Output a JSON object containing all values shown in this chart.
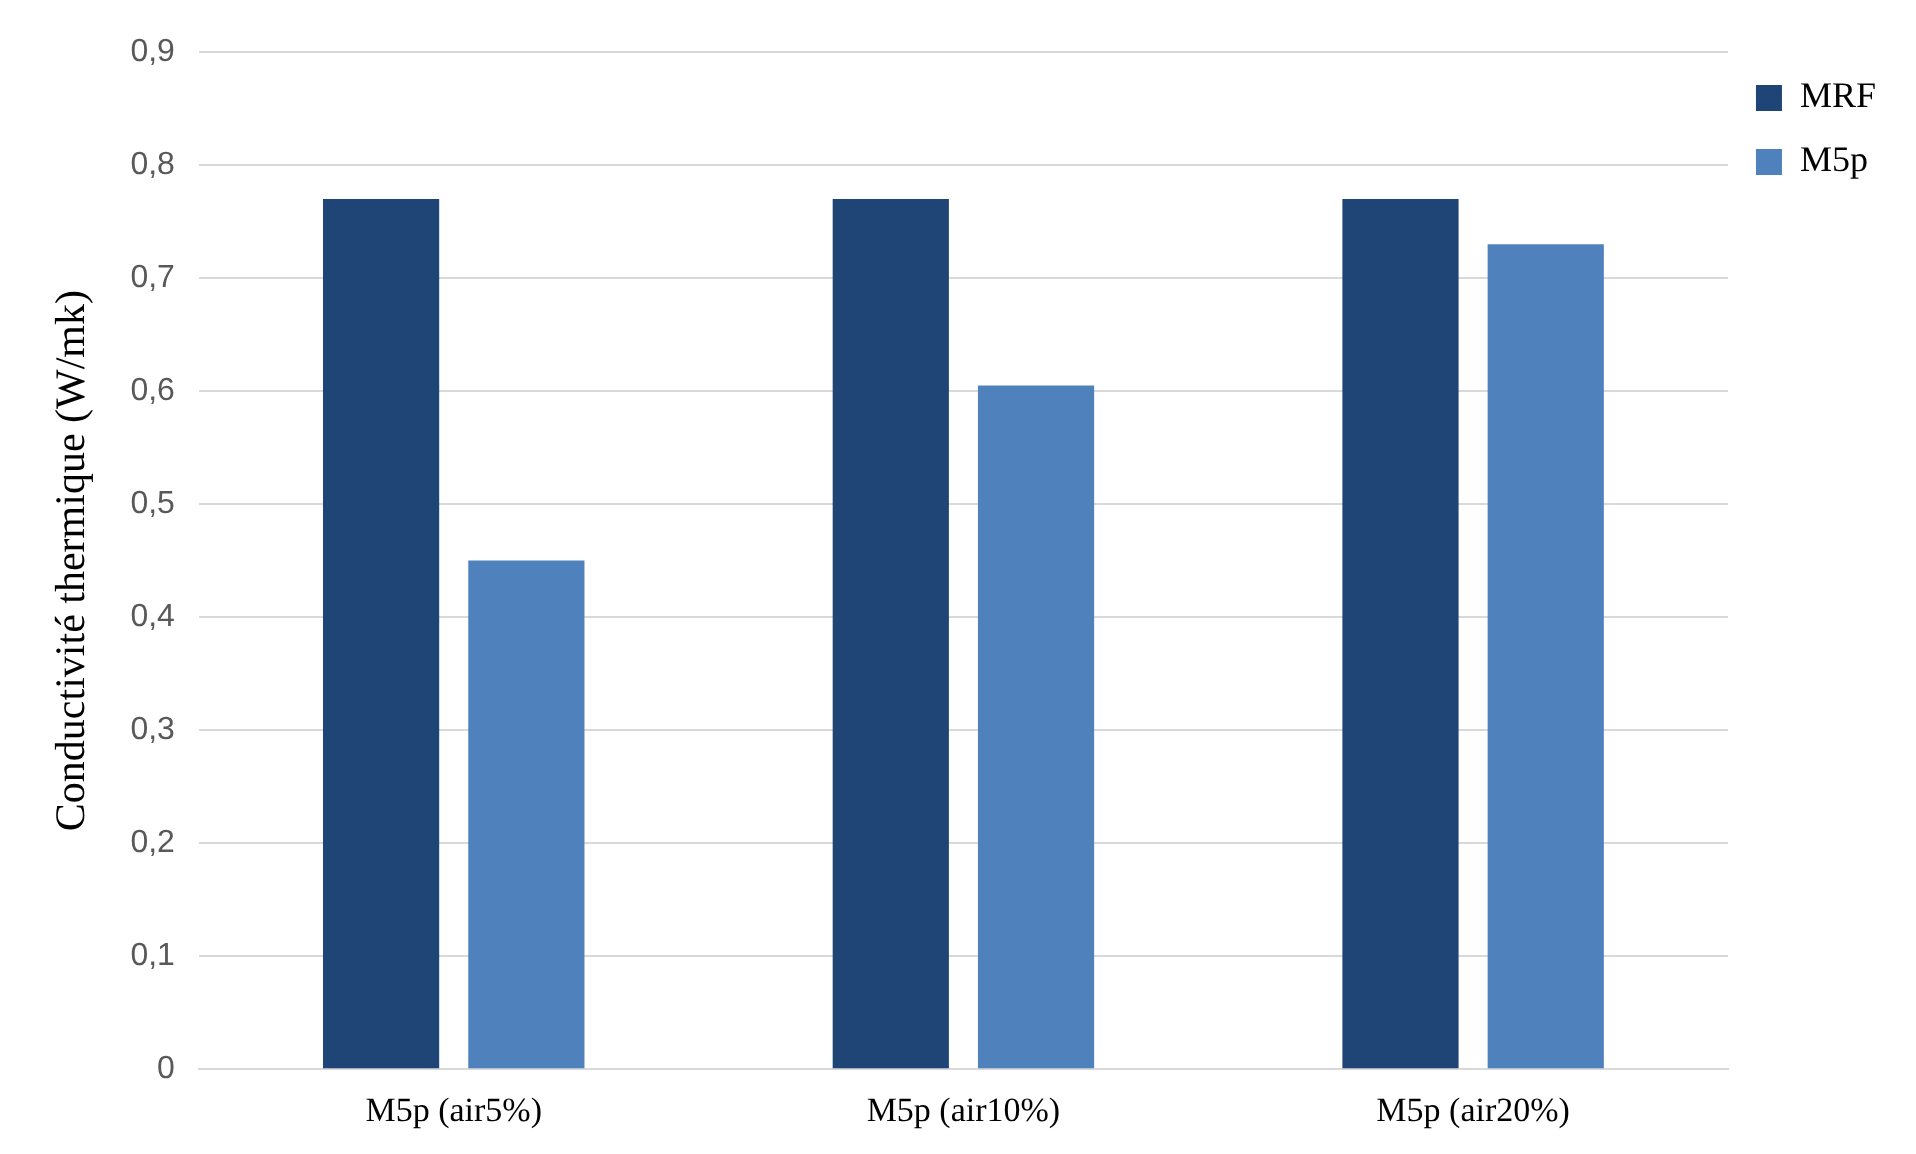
{
  "chart_data": {
    "type": "bar",
    "ylabel": "Conductivité thermique (W/mk)",
    "categories": [
      "M5p (air5%)",
      "M5p (air10%)",
      "M5p (air20%)"
    ],
    "series": [
      {
        "name": "MRF",
        "color": "#1f4476",
        "values": [
          0.77,
          0.77,
          0.77
        ]
      },
      {
        "name": "M5p",
        "color": "#4f81bd",
        "values": [
          0.45,
          0.605,
          0.73
        ]
      }
    ],
    "ylim": [
      0,
      0.9
    ],
    "yticks": [
      {
        "value": 0,
        "label": "0"
      },
      {
        "value": 0.1,
        "label": "0,1"
      },
      {
        "value": 0.2,
        "label": "0,2"
      },
      {
        "value": 0.3,
        "label": "0,3"
      },
      {
        "value": 0.4,
        "label": "0,4"
      },
      {
        "value": 0.5,
        "label": "0,5"
      },
      {
        "value": 0.6,
        "label": "0,6"
      },
      {
        "value": 0.7,
        "label": "0,7"
      },
      {
        "value": 0.8,
        "label": "0,8"
      },
      {
        "value": 0.9,
        "label": "0,9"
      }
    ],
    "grid": "y",
    "legend": "top right"
  }
}
